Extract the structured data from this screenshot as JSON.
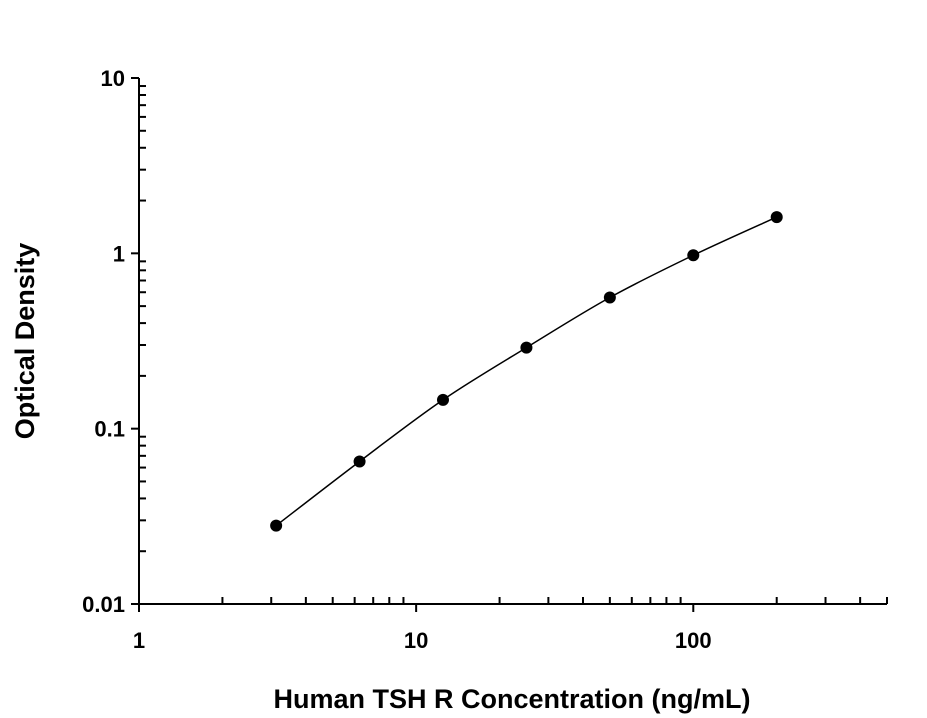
{
  "chart_data": {
    "type": "scatter",
    "title": "",
    "xlabel": "Human TSH R Concentration (ng/mL)",
    "ylabel": "Optical Density",
    "x_scale": "log",
    "y_scale": "log",
    "xlim": [
      1,
      500
    ],
    "ylim": [
      0.01,
      10
    ],
    "x_ticks": [
      1,
      10,
      100
    ],
    "x_tick_labels": [
      "1",
      "10",
      "100"
    ],
    "y_ticks": [
      0.01,
      0.1,
      1,
      10
    ],
    "y_tick_labels": [
      "0.01",
      "0.1",
      "1",
      "10"
    ],
    "grid": false,
    "legend": "none",
    "fit_curve": true,
    "marker_color": "#000000",
    "series": [
      {
        "x": [
          3.125,
          6.25,
          12.5,
          25,
          50,
          100,
          200
        ],
        "y": [
          0.028,
          0.065,
          0.146,
          0.29,
          0.56,
          0.975,
          1.61
        ]
      }
    ]
  }
}
